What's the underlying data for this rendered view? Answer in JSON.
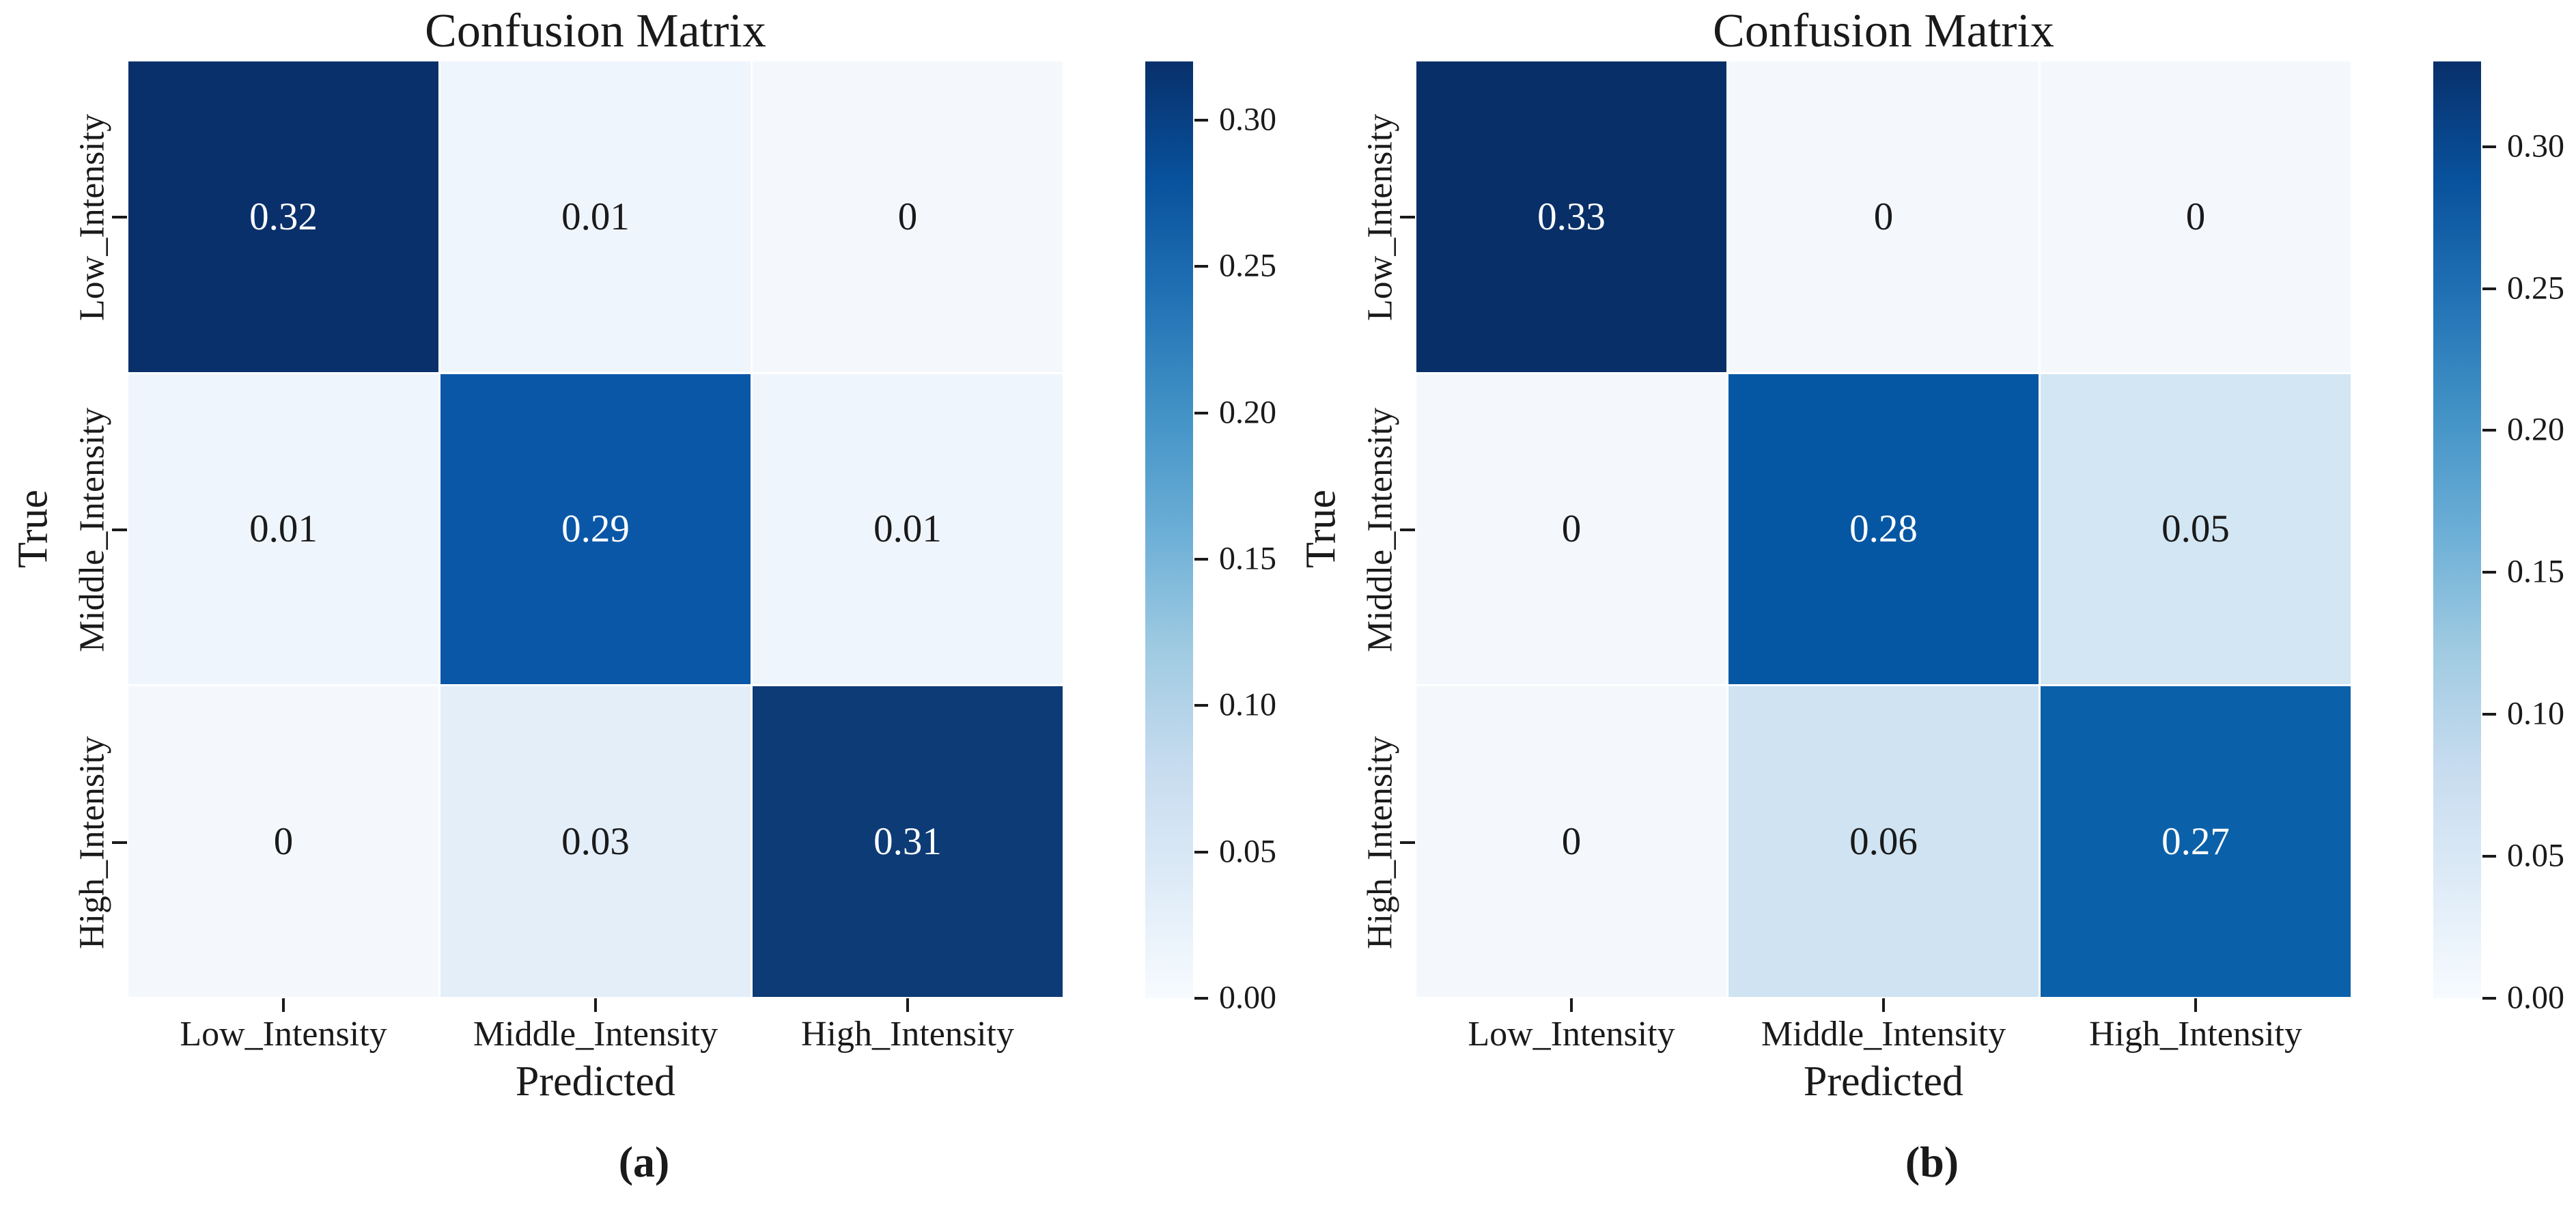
{
  "figure": {
    "background": "#ffffff"
  },
  "chart_data": [
    {
      "type": "heatmap",
      "title": "Confusion Matrix",
      "xlabel": "Predicted",
      "ylabel": "True",
      "caption": "(a)",
      "x_labels": [
        "Low_Intensity",
        "Middle_Intensity",
        "High_Intensity"
      ],
      "y_labels": [
        "Low_Intensity",
        "Middle_Intensity",
        "High_Intensity"
      ],
      "matrix": [
        [
          0.32,
          0.01,
          0
        ],
        [
          0.01,
          0.29,
          0.01
        ],
        [
          0,
          0.03,
          0.31
        ]
      ],
      "cell_labels": [
        [
          "0.32",
          "0.01",
          "0"
        ],
        [
          "0.01",
          "0.29",
          "0.01"
        ],
        [
          "0",
          "0.03",
          "0.31"
        ]
      ],
      "cell_colors": [
        [
          "#0a306b",
          "#eff5fc",
          "#f4f8fd"
        ],
        [
          "#eff5fc",
          "#0a57a8",
          "#eff5fc"
        ],
        [
          "#f4f8fd",
          "#e3eef9",
          "#0c3b76"
        ]
      ],
      "cell_text_colors": [
        [
          "#ffffff",
          "#1a1a1a",
          "#1a1a1a"
        ],
        [
          "#1a1a1a",
          "#ffffff",
          "#1a1a1a"
        ],
        [
          "#1a1a1a",
          "#1a1a1a",
          "#ffffff"
        ]
      ],
      "grid_on": false,
      "legend_position": "right-colorbar",
      "colorbar": {
        "vmin": 0.0,
        "vmax": 0.32,
        "cmap": "Blues",
        "gradient": [
          "#f7fbff",
          "#deebf7",
          "#c6dbef",
          "#9ecae1",
          "#6baed6",
          "#4292c6",
          "#2171b5",
          "#08519c",
          "#08306b"
        ],
        "ticks": [
          {
            "value": 0.3,
            "label": "0.30"
          },
          {
            "value": 0.25,
            "label": "0.25"
          },
          {
            "value": 0.2,
            "label": "0.20"
          },
          {
            "value": 0.15,
            "label": "0.15"
          },
          {
            "value": 0.1,
            "label": "0.10"
          },
          {
            "value": 0.05,
            "label": "0.05"
          },
          {
            "value": 0.0,
            "label": "0.00"
          }
        ]
      }
    },
    {
      "type": "heatmap",
      "title": "Confusion Matrix",
      "xlabel": "Predicted",
      "ylabel": "True",
      "caption": "(b)",
      "x_labels": [
        "Low_Intensity",
        "Middle_Intensity",
        "High_Intensity"
      ],
      "y_labels": [
        "Low_Intensity",
        "Middle_Intensity",
        "High_Intensity"
      ],
      "matrix": [
        [
          0.33,
          0,
          0
        ],
        [
          0,
          0.28,
          0.05
        ],
        [
          0,
          0.06,
          0.27
        ]
      ],
      "cell_labels": [
        [
          "0.33",
          "0",
          "0"
        ],
        [
          "0",
          "0.28",
          "0.05"
        ],
        [
          "0",
          "0.06",
          "0.27"
        ]
      ],
      "cell_colors": [
        [
          "#082f68",
          "#f4f8fd",
          "#f4f8fd"
        ],
        [
          "#f4f8fd",
          "#0557a4",
          "#d3e6f3"
        ],
        [
          "#f4f8fd",
          "#cfe3f2",
          "#0a60a9"
        ]
      ],
      "cell_text_colors": [
        [
          "#ffffff",
          "#1a1a1a",
          "#1a1a1a"
        ],
        [
          "#1a1a1a",
          "#ffffff",
          "#1a1a1a"
        ],
        [
          "#1a1a1a",
          "#1a1a1a",
          "#ffffff"
        ]
      ],
      "grid_on": false,
      "legend_position": "right-colorbar",
      "colorbar": {
        "vmin": 0.0,
        "vmax": 0.33,
        "cmap": "Blues",
        "gradient": [
          "#f7fbff",
          "#deebf7",
          "#c6dbef",
          "#9ecae1",
          "#6baed6",
          "#4292c6",
          "#2171b5",
          "#08519c",
          "#08306b"
        ],
        "ticks": [
          {
            "value": 0.3,
            "label": "0.30"
          },
          {
            "value": 0.25,
            "label": "0.25"
          },
          {
            "value": 0.2,
            "label": "0.20"
          },
          {
            "value": 0.15,
            "label": "0.15"
          },
          {
            "value": 0.1,
            "label": "0.10"
          },
          {
            "value": 0.05,
            "label": "0.05"
          },
          {
            "value": 0.0,
            "label": "0.00"
          }
        ]
      }
    }
  ]
}
